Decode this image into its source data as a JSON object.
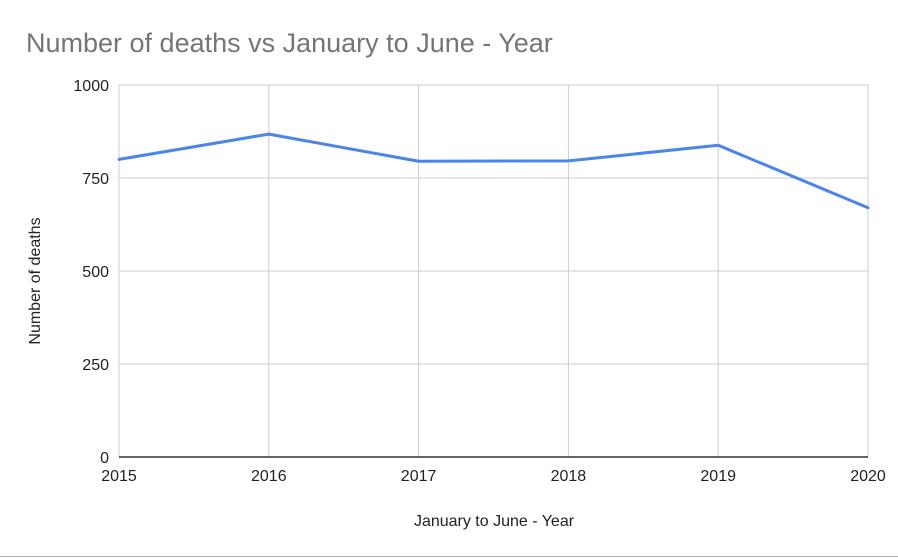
{
  "chart_data": {
    "type": "line",
    "title": "Number of deaths vs January to June - Year",
    "xlabel": "January to June - Year",
    "ylabel": "Number of deaths",
    "x": [
      "2015",
      "2016",
      "2017",
      "2018",
      "2019",
      "2020"
    ],
    "series": [
      {
        "values": [
          800,
          868,
          795,
          796,
          838,
          670
        ],
        "color": "#4a86e8"
      }
    ],
    "ylim": [
      0,
      1000
    ],
    "yticks": [
      "0",
      "250",
      "500",
      "750",
      "1000"
    ],
    "grid": true,
    "legend": "none",
    "colors": {
      "title": "#757575",
      "text": "#222222",
      "grid": "#cccccc",
      "baseline": "#333333"
    }
  }
}
